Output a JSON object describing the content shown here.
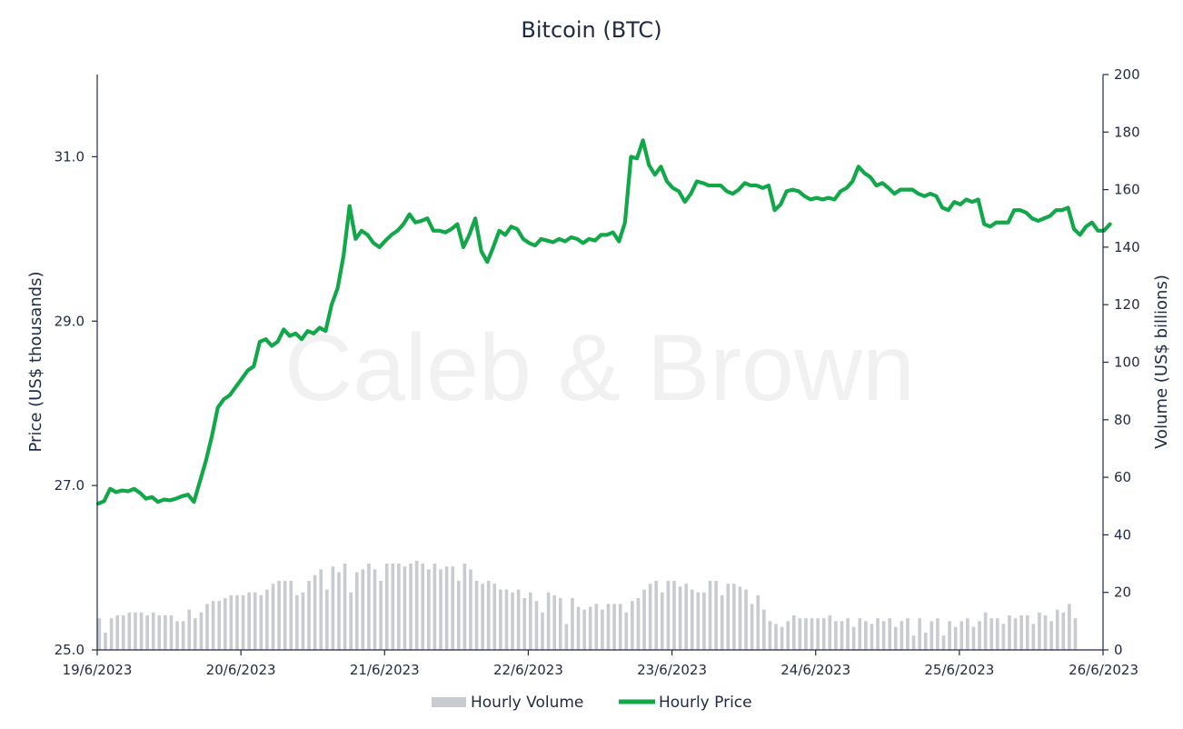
{
  "chart_data": {
    "type": "bar+line",
    "title": "Bitcoin (BTC)",
    "watermark": "Caleb & Brown",
    "y_left": {
      "label": "Price (US$ thousands)",
      "range": [
        25.0,
        32.0
      ],
      "ticks": [
        25.0,
        27.0,
        29.0,
        31.0
      ],
      "tick_labels": [
        "25.0",
        "27.0",
        "29.0",
        "31.0"
      ]
    },
    "y_right": {
      "label": "Volume (US$ billions)",
      "range": [
        0,
        200
      ],
      "ticks": [
        0,
        20,
        40,
        60,
        80,
        100,
        120,
        140,
        160,
        180,
        200
      ],
      "tick_labels": [
        "0",
        "20",
        "40",
        "60",
        "80",
        "100",
        "120",
        "140",
        "160",
        "180",
        "200"
      ]
    },
    "x_axis": {
      "range": [
        "19/6/2023",
        "26/6/2023"
      ],
      "tick_labels": [
        "19/6/2023",
        "20/6/2023",
        "21/6/2023",
        "22/6/2023",
        "23/6/2023",
        "24/6/2023",
        "25/6/2023",
        "26/6/2023"
      ]
    },
    "legend": {
      "placement": "bottom-center",
      "items": [
        {
          "label": "Hourly Volume",
          "color": "#c8cbd0"
        },
        {
          "label": "Hourly Price",
          "color": "#12a84a"
        }
      ]
    },
    "series": [
      {
        "name": "Hourly Price",
        "axis": "left",
        "color": "#12a84a",
        "points_per_day": 24,
        "values": [
          26.78,
          26.81,
          26.96,
          26.92,
          26.94,
          26.93,
          26.96,
          26.91,
          26.84,
          26.86,
          26.8,
          26.83,
          26.82,
          26.84,
          26.87,
          26.89,
          26.8,
          27.05,
          27.3,
          27.6,
          27.95,
          28.05,
          28.1,
          28.2,
          28.3,
          28.4,
          28.45,
          28.75,
          28.78,
          28.7,
          28.75,
          28.9,
          28.82,
          28.85,
          28.78,
          28.88,
          28.85,
          28.92,
          28.88,
          29.2,
          29.4,
          29.8,
          30.4,
          30.0,
          30.1,
          30.05,
          29.95,
          29.9,
          29.98,
          30.05,
          30.1,
          30.18,
          30.3,
          30.2,
          30.22,
          30.25,
          30.1,
          30.1,
          30.08,
          30.12,
          30.18,
          29.9,
          30.05,
          30.25,
          29.85,
          29.72,
          29.9,
          30.1,
          30.05,
          30.15,
          30.12,
          30.0,
          29.95,
          29.92,
          30.0,
          29.98,
          29.96,
          30.0,
          29.97,
          30.02,
          30.0,
          29.95,
          30.0,
          29.98,
          30.05,
          30.05,
          30.08,
          29.97,
          30.2,
          31.0,
          30.98,
          31.2,
          30.9,
          30.78,
          30.88,
          30.7,
          30.62,
          30.58,
          30.45,
          30.55,
          30.7,
          30.68,
          30.65,
          30.65,
          30.65,
          30.58,
          30.55,
          30.6,
          30.68,
          30.65,
          30.65,
          30.62,
          30.65,
          30.35,
          30.42,
          30.58,
          30.6,
          30.58,
          30.52,
          30.48,
          30.5,
          30.48,
          30.5,
          30.48,
          30.58,
          30.62,
          30.7,
          30.88,
          30.8,
          30.75,
          30.65,
          30.68,
          30.62,
          30.55,
          30.6,
          30.6,
          30.6,
          30.55,
          30.52,
          30.55,
          30.52,
          30.38,
          30.35,
          30.45,
          30.42,
          30.48,
          30.45,
          30.48,
          30.18,
          30.15,
          30.2,
          30.2,
          30.2,
          30.35,
          30.35,
          30.32,
          30.25,
          30.22,
          30.25,
          30.28,
          30.35,
          30.35,
          30.38,
          30.12,
          30.05,
          30.15,
          30.2,
          30.1,
          30.1,
          30.18
        ]
      },
      {
        "name": "Hourly Volume",
        "axis": "right",
        "color": "#c8cbd0",
        "points_per_day": 24,
        "values": [
          11,
          6,
          11,
          12,
          12,
          13,
          13,
          13,
          12,
          13,
          12,
          12,
          12,
          10,
          10,
          14,
          11,
          13,
          16,
          17,
          17,
          18,
          19,
          19,
          19,
          20,
          20,
          19,
          21,
          23,
          24,
          24,
          24,
          19,
          20,
          24,
          26,
          28,
          21,
          29,
          27,
          30,
          20,
          27,
          28,
          30,
          28,
          24,
          30,
          30,
          30,
          29,
          30,
          31,
          30,
          28,
          30,
          28,
          29,
          29,
          24,
          30,
          28,
          24,
          23,
          24,
          23,
          21,
          21,
          20,
          21,
          18,
          20,
          17,
          13,
          20,
          19,
          18,
          9,
          18,
          15,
          14,
          15,
          16,
          14,
          16,
          16,
          16,
          13,
          17,
          18,
          21,
          23,
          24,
          20,
          24,
          24,
          22,
          23,
          21,
          20,
          20,
          24,
          24,
          19,
          23,
          23,
          22,
          21,
          16,
          19,
          14,
          10,
          9,
          8,
          10,
          12,
          11,
          11,
          11,
          11,
          11,
          12,
          10,
          10,
          11,
          8,
          11,
          10,
          9,
          11,
          10,
          11,
          8,
          10,
          11,
          5,
          11,
          6,
          10,
          11,
          5,
          10,
          8,
          10,
          11,
          8,
          10,
          13,
          11,
          11,
          9,
          12,
          11,
          12,
          12,
          9,
          13,
          12,
          10,
          14,
          13,
          16,
          11
        ]
      }
    ]
  }
}
